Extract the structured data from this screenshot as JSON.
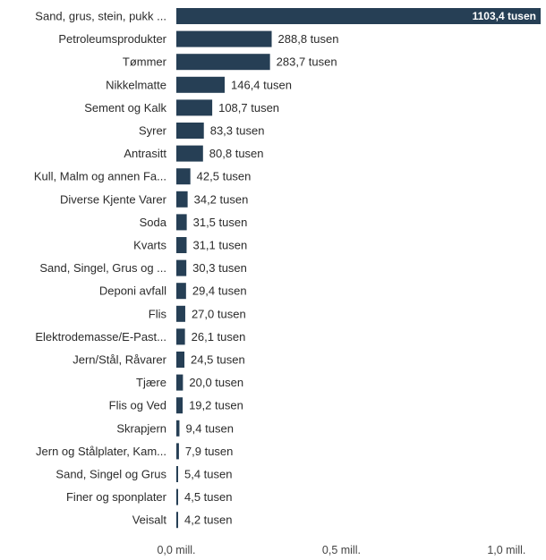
{
  "chart_data": {
    "type": "bar",
    "orientation": "horizontal",
    "bar_color": "#263f55",
    "categories": [
      "Sand, grus, stein, pukk ...",
      "Petroleumsprodukter",
      "Tømmer",
      "Nikkelmatte",
      "Sement og Kalk",
      "Syrer",
      "Antrasitt",
      "Kull, Malm og annen Fa...",
      "Diverse Kjente Varer",
      "Soda",
      "Kvarts",
      "Sand, Singel, Grus og ...",
      "Deponi avfall",
      "Flis",
      "Elektrodemasse/E-Past...",
      "Jern/Stål, Råvarer",
      "Tjære",
      "Flis og Ved",
      "Skrapjern",
      "Jern og Stålplater, Kam...",
      "Sand, Singel og Grus",
      "Finer og sponplater",
      "Veisalt"
    ],
    "values": [
      1103.4,
      288.8,
      283.7,
      146.4,
      108.7,
      83.3,
      80.8,
      42.5,
      34.2,
      31.5,
      31.1,
      30.3,
      29.4,
      27.0,
      26.1,
      24.5,
      20.0,
      19.2,
      9.4,
      7.9,
      5.4,
      4.5,
      4.2
    ],
    "value_labels": [
      "1103,4 tusen",
      "288,8 tusen",
      "283,7 tusen",
      "146,4 tusen",
      "108,7 tusen",
      "83,3 tusen",
      "80,8 tusen",
      "42,5 tusen",
      "34,2 tusen",
      "31,5 tusen",
      "31,1 tusen",
      "30,3 tusen",
      "29,4 tusen",
      "27,0 tusen",
      "26,1 tusen",
      "24,5 tusen",
      "20,0 tusen",
      "19,2 tusen",
      "9,4 tusen",
      "7,9 tusen",
      "5,4 tusen",
      "4,5 tusen",
      "4,2 tusen"
    ],
    "value_unit": "tusen",
    "xlim": [
      0,
      1103.4
    ],
    "x_ticks": [
      0,
      500,
      1000
    ],
    "x_tick_labels": [
      "0,0 mill.",
      "0,5 mill.",
      "1,0 mill."
    ],
    "title": "",
    "xlabel": "",
    "ylabel": "",
    "grid": false,
    "legend": false
  }
}
